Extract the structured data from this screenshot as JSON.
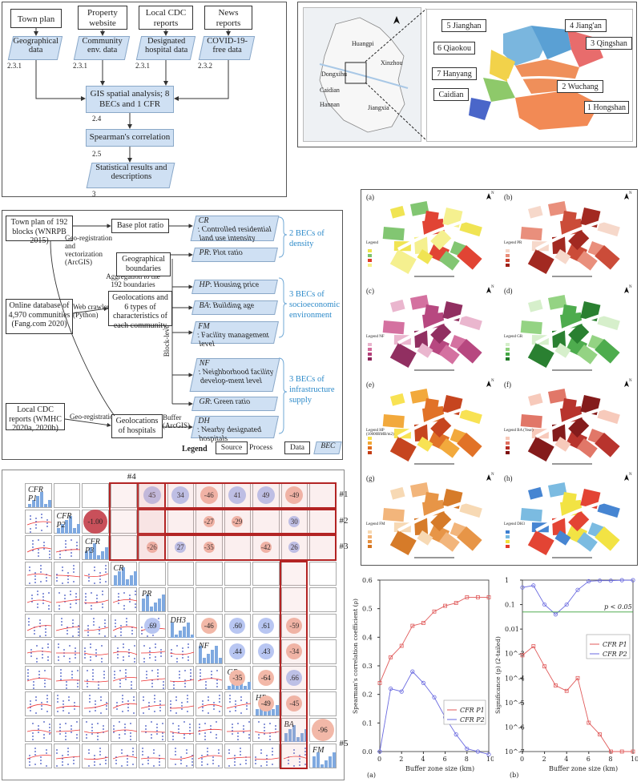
{
  "workflow": {
    "sources": [
      "Town plan",
      "Property website",
      "Local CDC reports",
      "News reports"
    ],
    "data": [
      "Geographical data",
      "Community env. data",
      "Designated hospital data",
      "COVID-19-free data"
    ],
    "data_nums": [
      "2.3.1",
      "2.3.1",
      "2.3.1",
      "2.3.2"
    ],
    "gis": "GIS spatial analysis; 8 BECs and 1 CFR",
    "gis_num": "2.4",
    "spearman": "Spearman's correlation",
    "spearman_num": "2.5",
    "results": "Statistical results and descriptions",
    "results_num": "3"
  },
  "location_map": {
    "districts": [
      "5 Jianghan",
      "4 Jiang'an",
      "6 Qiaokou",
      "3 Qingshan",
      "7 Hanyang",
      "2 Wuchang",
      "Caidian",
      "1 Hongshan"
    ],
    "overview_labels": [
      "Huangpi",
      "Xinzhou",
      "Dongxihu",
      "Caidian",
      "Hannan",
      "Jiangxia"
    ]
  },
  "becs": {
    "sources": [
      "Town plan of 192 blocks (WNRPB 2015)",
      "Online database of 4,970 communities (Fang.com 2020)",
      "Local CDC reports (WMHC 2020a, 2020b)"
    ],
    "process_notes": [
      "Geo-registration and vectorization (ArcGIS)",
      "Web crawler (Python)",
      "Geo-registration",
      "Aggregation to the 192 boundaries",
      "Block-level average",
      "Buffer (ArcGIS)"
    ],
    "processes": [
      "Base plot ratio",
      "Geographical boundaries",
      "Geolocations and 6 types of characteristics of each community",
      "Geolocations of hospitals"
    ],
    "items": [
      {
        "abbr": "CR",
        "text": ": Controlled residential land use intensity"
      },
      {
        "abbr": "PR",
        "text": ": Plot ratio"
      },
      {
        "abbr": "HP",
        "text": ": Housing price"
      },
      {
        "abbr": "BA",
        "text": ": Building age"
      },
      {
        "abbr": "FM",
        "text": ": Facility management level"
      },
      {
        "abbr": "NF",
        "text": ": Neighborhood facility develop-ment level"
      },
      {
        "abbr": "GR",
        "text": ": Green ratio"
      },
      {
        "abbr": "DH",
        "text": ": Nearby designated hospitals"
      }
    ],
    "groups": [
      "2 BECs of density",
      "3 BECs of socioeconomic environment",
      "3 BECs of infrastructure supply"
    ],
    "legend": {
      "title": "Legend",
      "source": "Source",
      "process": "Process",
      "data": "Data",
      "bec": "BEC"
    }
  },
  "maps": {
    "panels": [
      "(a)",
      "(b)",
      "(c)",
      "(d)",
      "(e)",
      "(f)",
      "(g)",
      "(h)"
    ],
    "legend_titles": [
      "Legend",
      "Legend PR",
      "Legend NF",
      "Legend GR",
      "Legend HP (10000RMB/m2)",
      "Legend BA (Year)",
      "Legend FM",
      "Legend DH3"
    ],
    "north": "N"
  },
  "corr_matrix": {
    "diag": [
      "CFR P1",
      "CFR P2",
      "CFR P3",
      "CR",
      "PR",
      "DH3",
      "NF",
      "GR",
      "HP",
      "BA",
      "FM"
    ],
    "row1": [
      "",
      "",
      "45",
      "34",
      "-46",
      "41",
      "49",
      "-49"
    ],
    "row2": [
      "",
      "",
      "",
      "",
      "-27",
      "-29",
      "",
      "30"
    ],
    "row3": [
      "",
      "",
      "-26",
      "27",
      "-35",
      "",
      "-42",
      "26"
    ],
    "special": "-1.00",
    "bands": [
      "#1",
      "#2",
      "#3",
      "#4",
      "#5"
    ],
    "col_values": [
      ".69",
      "-46",
      ".60",
      ".61",
      "-59",
      ".44",
      ".43",
      "-34",
      "-35",
      "-64",
      ".66",
      "-49",
      "-45",
      "-96"
    ]
  },
  "chart_data": [
    {
      "type": "line",
      "title": "(a)",
      "xlabel": "Buffer zone size (km)",
      "ylabel": "Spearman's correlation coefficient (ρ)",
      "xlim": [
        0,
        10
      ],
      "ylim": [
        0,
        0.6
      ],
      "x": [
        0,
        1,
        2,
        3,
        4,
        5,
        6,
        7,
        8,
        9,
        10
      ],
      "series": [
        {
          "name": "CFR P1",
          "values": [
            0.24,
            0.33,
            0.37,
            0.44,
            0.45,
            0.49,
            0.51,
            0.52,
            0.54,
            0.54,
            0.54
          ]
        },
        {
          "name": "CFR P2",
          "values": [
            0.0,
            0.22,
            0.21,
            0.28,
            0.24,
            0.19,
            0.12,
            0.06,
            0.01,
            0.0,
            -0.01
          ]
        }
      ],
      "legend": "bottom-right"
    },
    {
      "type": "line",
      "title": "(b)",
      "xlabel": "Buffer zone size (km)",
      "ylabel": "Significance (p) (2-tailed)",
      "yscale": "log",
      "xlim": [
        0,
        10
      ],
      "annotation": "p < 0.05",
      "x": [
        0,
        1,
        2,
        3,
        4,
        5,
        6,
        7,
        8,
        9,
        10
      ],
      "series": [
        {
          "name": "CFR P1",
          "values": [
            0.00085,
            0.002,
            0.0003,
            5e-05,
            3e-05,
            0.0001,
            1.5e-06,
            5e-07,
            1e-07,
            1e-07,
            1e-07
          ]
        },
        {
          "name": "CFR P2",
          "values": [
            0.5,
            0.6,
            0.1,
            0.04,
            0.1,
            0.4,
            0.9,
            0.95,
            0.95,
            0.99,
            0.99
          ]
        }
      ],
      "legend": "center-right"
    }
  ]
}
